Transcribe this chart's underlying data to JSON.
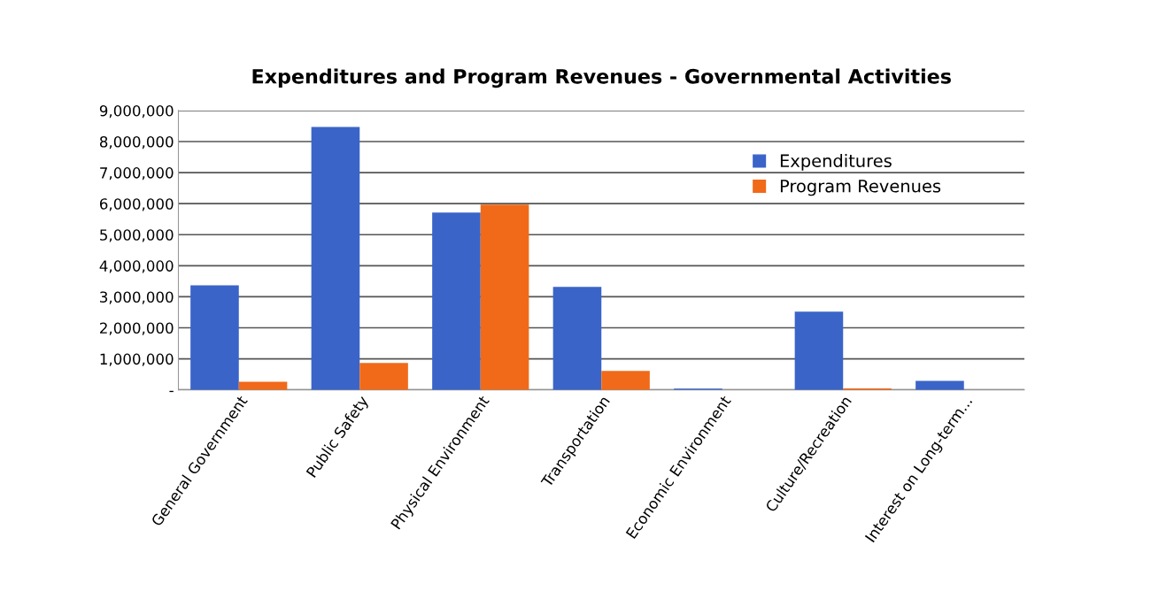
{
  "chart_data": {
    "type": "bar",
    "title": "Expenditures and Program Revenues - Governmental Activities",
    "categories": [
      "General Government",
      "Public Safety",
      "Physical Environment",
      "Transportation",
      "Economic Environment",
      "Culture/Recreation",
      "Interest on Long-term..."
    ],
    "series": [
      {
        "name": "Expenditures",
        "color": "#3a64c8",
        "values": [
          3370000,
          8470000,
          5710000,
          3320000,
          40000,
          2520000,
          290000
        ]
      },
      {
        "name": "Program Revenues",
        "color": "#f06a1a",
        "values": [
          260000,
          870000,
          5970000,
          610000,
          0,
          50000,
          0
        ]
      }
    ],
    "ylim": [
      0,
      9000000
    ],
    "yticks": [
      {
        "value": 0,
        "label": "-"
      },
      {
        "value": 1000000,
        "label": "1,000,000"
      },
      {
        "value": 2000000,
        "label": "2,000,000"
      },
      {
        "value": 3000000,
        "label": "3,000,000"
      },
      {
        "value": 4000000,
        "label": "4,000,000"
      },
      {
        "value": 5000000,
        "label": "5,000,000"
      },
      {
        "value": 6000000,
        "label": "6,000,000"
      },
      {
        "value": 7000000,
        "label": "7,000,000"
      },
      {
        "value": 8000000,
        "label": "8,000,000"
      },
      {
        "value": 9000000,
        "label": "9,000,000"
      }
    ],
    "grid": "y",
    "legend": "top right"
  }
}
